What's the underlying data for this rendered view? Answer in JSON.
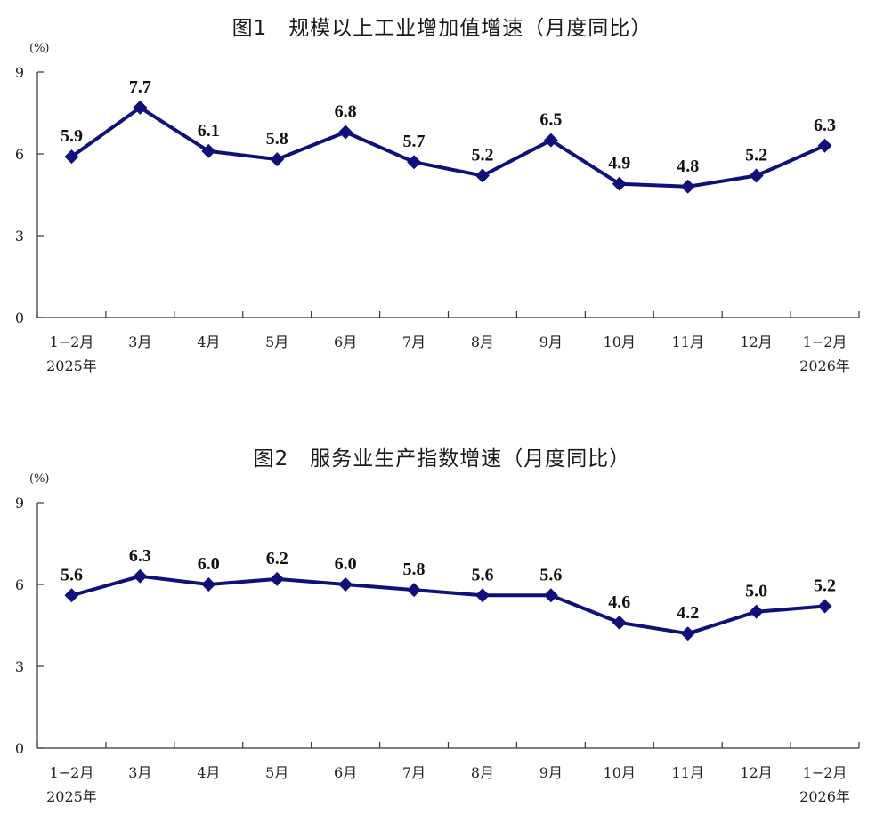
{
  "chart_data": [
    {
      "type": "line",
      "title": "图1　规模以上工业增加值增速（月度同比）",
      "unit": "(%)",
      "categories": [
        "1−2月",
        "3月",
        "4月",
        "5月",
        "6月",
        "7月",
        "8月",
        "9月",
        "10月",
        "11月",
        "12月",
        "1−2月"
      ],
      "category_sublabels": [
        "2025年",
        "",
        "",
        "",
        "",
        "",
        "",
        "",
        "",
        "",
        "",
        "2026年"
      ],
      "values": [
        5.9,
        7.7,
        6.1,
        5.8,
        6.8,
        5.7,
        5.2,
        6.5,
        4.9,
        4.8,
        5.2,
        6.3
      ],
      "value_labels": [
        "5.9",
        "7.7",
        "6.1",
        "5.8",
        "6.8",
        "5.7",
        "5.2",
        "6.5",
        "4.9",
        "4.8",
        "5.2",
        "6.3"
      ],
      "yticks": [
        0,
        3,
        6,
        9
      ],
      "ytick_labels": [
        "0",
        "3",
        "6",
        "9"
      ],
      "ylim": [
        0,
        9
      ],
      "grid": false,
      "line_color": "#10107a"
    },
    {
      "type": "line",
      "title": "图2　服务业生产指数增速（月度同比）",
      "unit": "(%)",
      "categories": [
        "1−2月",
        "3月",
        "4月",
        "5月",
        "6月",
        "7月",
        "8月",
        "9月",
        "10月",
        "11月",
        "12月",
        "1−2月"
      ],
      "category_sublabels": [
        "2025年",
        "",
        "",
        "",
        "",
        "",
        "",
        "",
        "",
        "",
        "",
        "2026年"
      ],
      "values": [
        5.6,
        6.3,
        6.0,
        6.2,
        6.0,
        5.8,
        5.6,
        5.6,
        4.6,
        4.2,
        5.0,
        5.2
      ],
      "value_labels": [
        "5.6",
        "6.3",
        "6.0",
        "6.2",
        "6.0",
        "5.8",
        "5.6",
        "5.6",
        "4.6",
        "4.2",
        "5.0",
        "5.2"
      ],
      "yticks": [
        0,
        3,
        6,
        9
      ],
      "ytick_labels": [
        "0",
        "3",
        "6",
        "9"
      ],
      "ylim": [
        0,
        9
      ],
      "grid": false,
      "line_color": "#10107a"
    }
  ]
}
